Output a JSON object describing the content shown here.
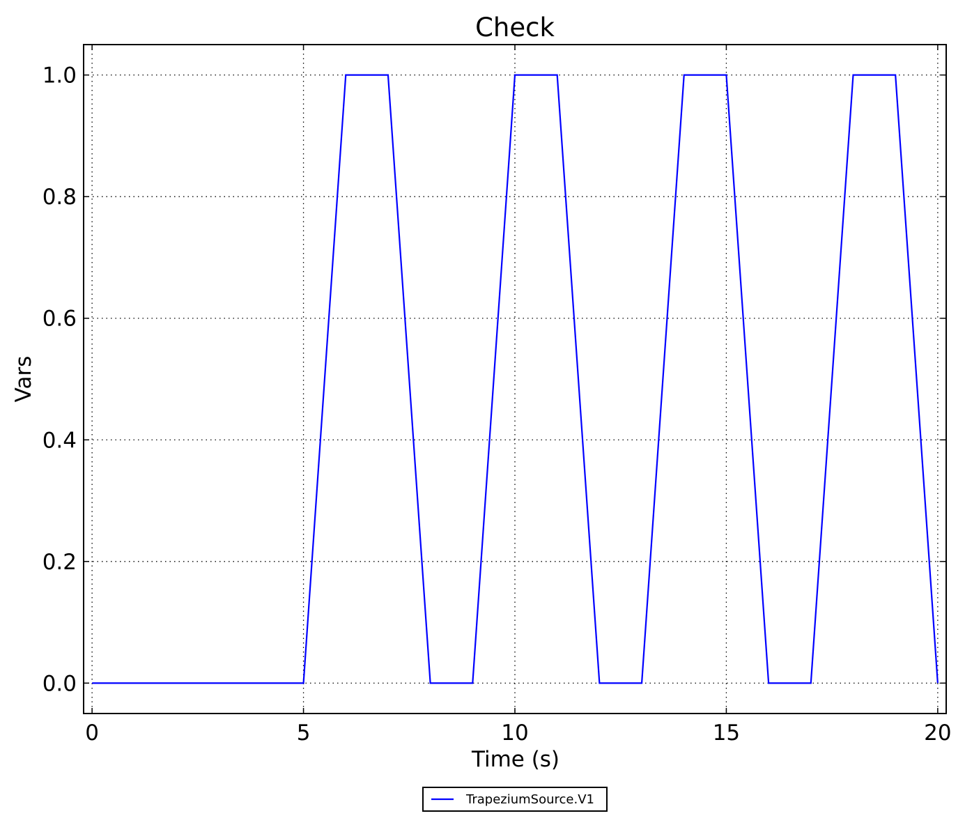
{
  "chart_data": {
    "type": "line",
    "title": "Check",
    "x_label": "Time (s)",
    "y_label": "Vars",
    "x": [
      0,
      5,
      6,
      7,
      8,
      9,
      10,
      11,
      12,
      13,
      14,
      15,
      16,
      17,
      18,
      19,
      20
    ],
    "series": [
      {
        "name": "TrapeziumSource.V1",
        "color": "#0000ff",
        "values": [
          0,
          0,
          1,
          1,
          0,
          0,
          1,
          1,
          0,
          0,
          1,
          1,
          0,
          0,
          1,
          1,
          0
        ]
      }
    ],
    "xlim": [
      -0.2,
      20.2
    ],
    "ylim": [
      -0.05,
      1.05
    ],
    "xticks": [
      0,
      5,
      10,
      15,
      20
    ],
    "yticks": [
      {
        "value": 0,
        "label": "0.0"
      },
      0.2,
      0.4,
      0.6,
      0.8,
      {
        "value": 1,
        "label": "1.0"
      }
    ],
    "grid": true,
    "legend": "below"
  }
}
